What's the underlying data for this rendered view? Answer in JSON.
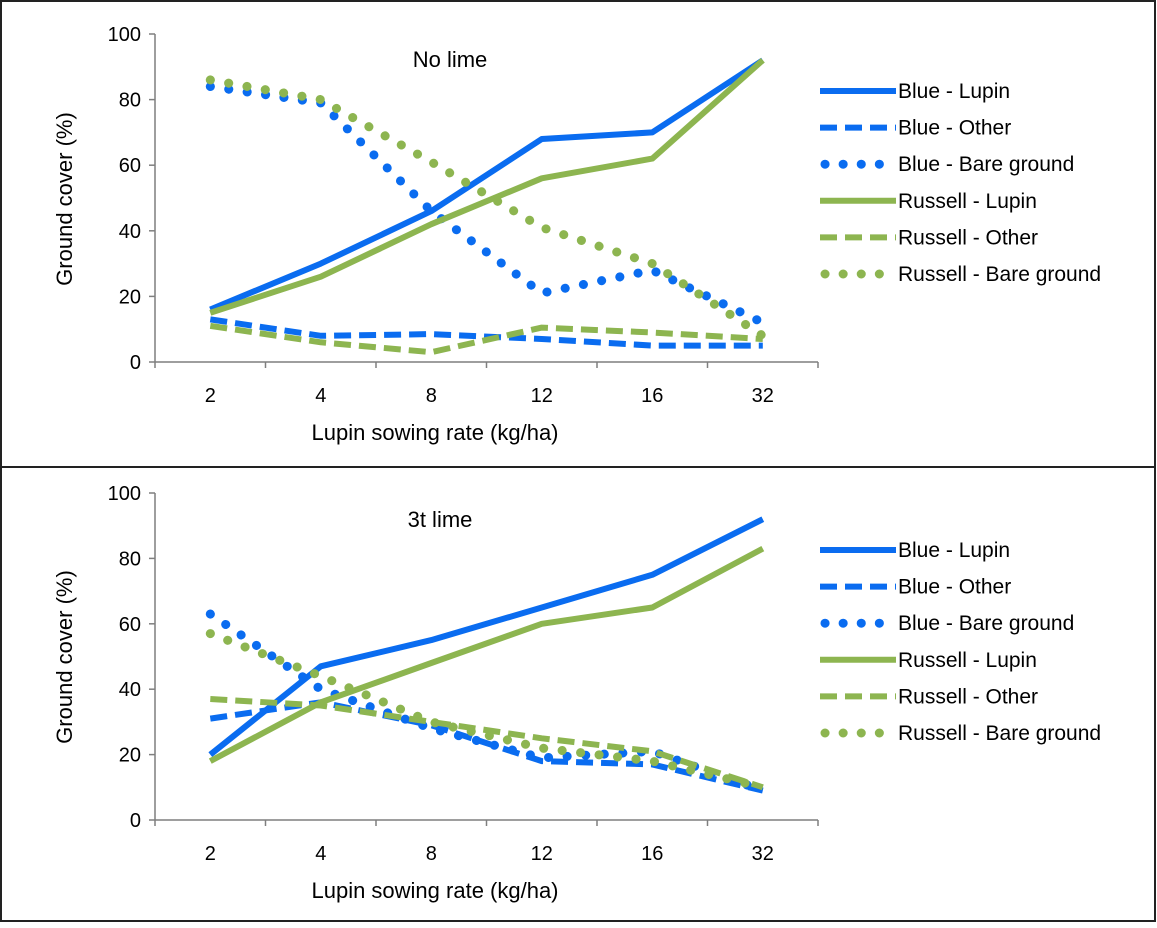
{
  "colors": {
    "blue": "#0a6cf0",
    "green": "#8db550",
    "frame": "#222222",
    "axis": "#7f7f7f"
  },
  "chart_data": [
    {
      "type": "line",
      "title": "No lime",
      "xlabel": "Lupin sowing rate (kg/ha)",
      "ylabel": "Ground cover (%)",
      "categories": [
        "2",
        "4",
        "8",
        "12",
        "16",
        "32"
      ],
      "ylim": [
        0,
        100
      ],
      "yticks": [
        0,
        20,
        40,
        60,
        80,
        100
      ],
      "grid": false,
      "legend_position": "right",
      "series": [
        {
          "name": "Blue -  Lupin",
          "color": "blue",
          "style": "solid",
          "values": [
            16,
            30,
            46,
            68,
            70,
            92
          ]
        },
        {
          "name": "Blue -  Other",
          "color": "blue",
          "style": "dashed",
          "values": [
            13,
            8,
            8.5,
            7,
            5,
            5
          ]
        },
        {
          "name": "Blue - Bare ground",
          "color": "blue",
          "style": "dotted",
          "values": [
            84,
            79,
            46,
            21,
            28,
            12
          ]
        },
        {
          "name": "Russell -  Lupin",
          "color": "green",
          "style": "solid",
          "values": [
            15,
            26,
            42,
            56,
            62,
            92
          ]
        },
        {
          "name": "Russell -  Other",
          "color": "green",
          "style": "dashed",
          "values": [
            11,
            6,
            3,
            10.5,
            9,
            7
          ]
        },
        {
          "name": "Russell - Bare ground",
          "color": "green",
          "style": "dotted",
          "values": [
            86,
            80,
            61,
            41,
            30,
            8
          ]
        }
      ]
    },
    {
      "type": "line",
      "title": "3t lime",
      "xlabel": "Lupin sowing rate (kg/ha)",
      "ylabel": "Ground cover (%)",
      "categories": [
        "2",
        "4",
        "8",
        "12",
        "16",
        "32"
      ],
      "ylim": [
        0,
        100
      ],
      "yticks": [
        0,
        20,
        40,
        60,
        80,
        100
      ],
      "grid": false,
      "legend_position": "right",
      "series": [
        {
          "name": "Blue -  Lupin",
          "color": "blue",
          "style": "solid",
          "values": [
            20,
            47,
            55,
            65,
            75,
            92
          ]
        },
        {
          "name": "Blue -  Other",
          "color": "blue",
          "style": "dashed",
          "values": [
            31,
            36,
            29,
            18,
            17,
            9
          ]
        },
        {
          "name": "Blue - Bare ground",
          "color": "blue",
          "style": "dotted",
          "values": [
            63,
            40,
            28,
            19,
            21,
            9
          ]
        },
        {
          "name": "Russell -  Lupin",
          "color": "green",
          "style": "solid",
          "values": [
            18,
            36,
            48,
            60,
            65,
            83
          ]
        },
        {
          "name": "Russell -  Other",
          "color": "green",
          "style": "dashed",
          "values": [
            37,
            35,
            30,
            25,
            21,
            10
          ]
        },
        {
          "name": "Russell - Bare ground",
          "color": "green",
          "style": "dotted",
          "values": [
            57,
            44,
            30,
            22,
            18,
            10
          ]
        }
      ]
    }
  ]
}
